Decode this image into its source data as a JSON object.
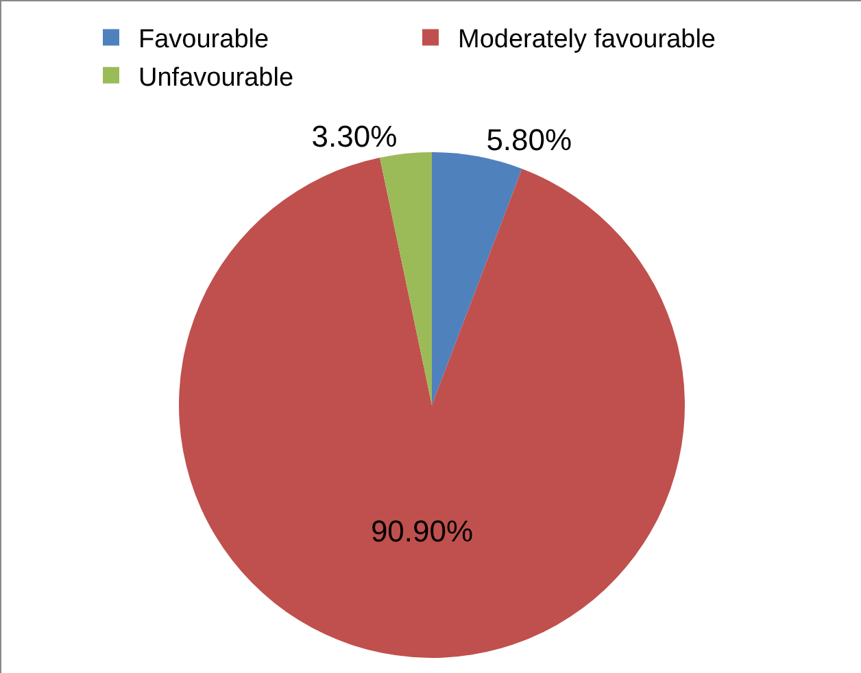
{
  "chart_data": {
    "type": "pie",
    "categories": [
      "Favourable",
      "Moderately favourable",
      "Unfavourable"
    ],
    "values": [
      5.8,
      90.9,
      3.3
    ],
    "colors": [
      "#4f81bd",
      "#c0504d",
      "#9bbb59"
    ],
    "value_labels": [
      "5.80%",
      "90.90%",
      "3.30%"
    ],
    "legend": "top"
  }
}
